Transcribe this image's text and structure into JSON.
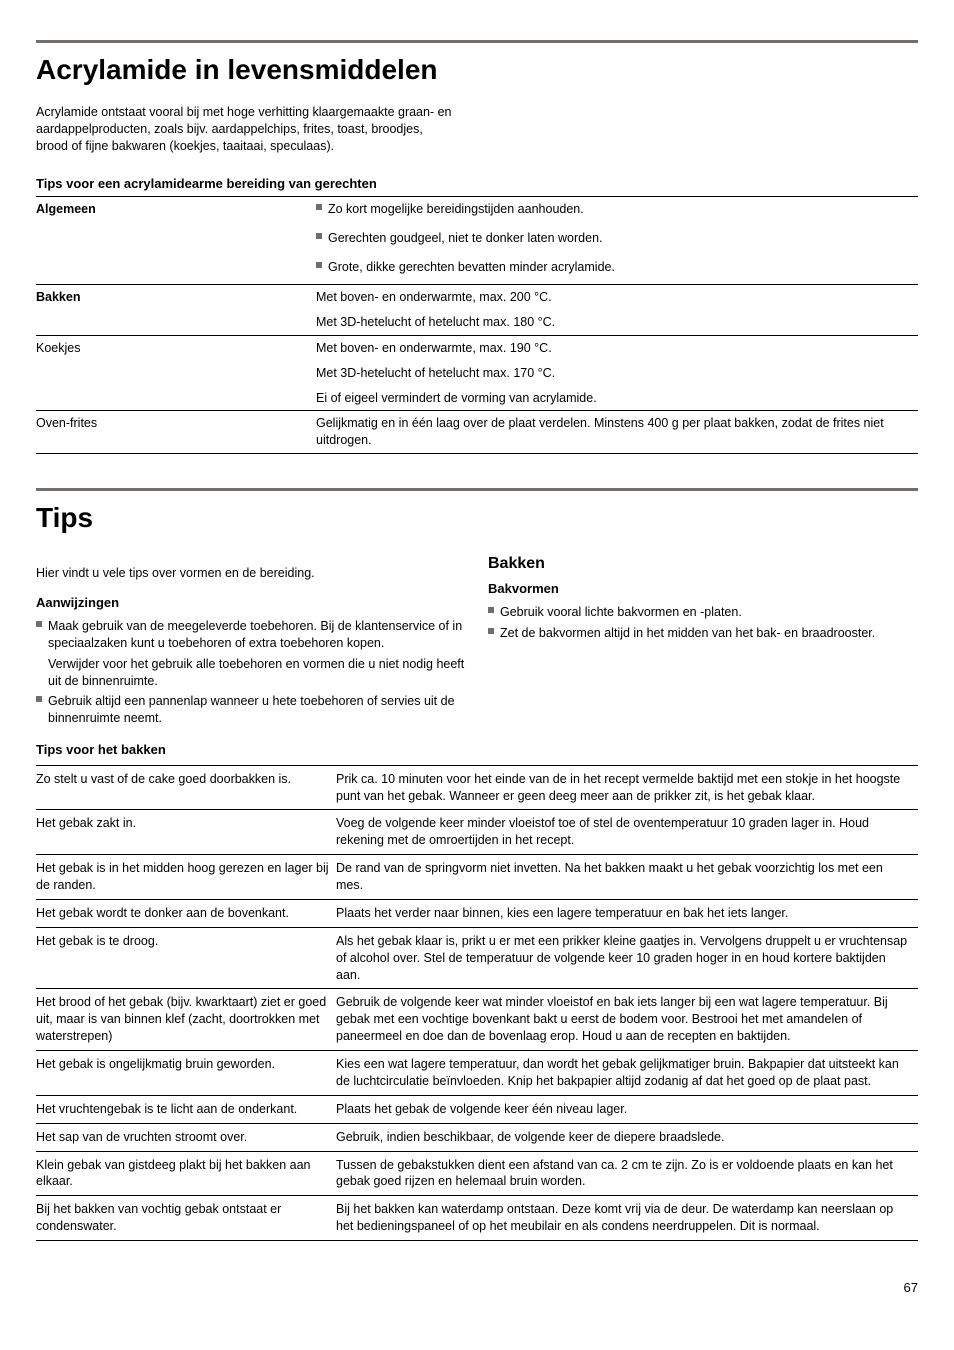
{
  "section1": {
    "title": "Acrylamide in levensmiddelen",
    "intro": "Acrylamide ontstaat vooral bij met hoge verhitting klaargemaakte graan- en aardappelproducten, zoals bijv. aardappelchips, frites, toast, broodjes, brood of fijne bakwaren (koekjes, taaitaai, speculaas).",
    "table_caption": "Tips voor een acrylamidearme bereiding van gerechten",
    "rows": [
      {
        "label": "Algemeen",
        "bold": true,
        "items": [
          "Zo kort mogelijke bereidingstijden aanhouden.",
          "Gerechten goudgeel, niet te donker laten worden.",
          "Grote, dikke gerechten bevatten minder acrylamide."
        ]
      },
      {
        "label": "Bakken",
        "bold": true,
        "items": [
          "Met boven- en onderwarmte, max. 200 °C.",
          "Met 3D-hetelucht of hetelucht max. 180 °C."
        ]
      },
      {
        "label": "Koekjes",
        "bold": false,
        "items": [
          "Met boven- en onderwarmte, max. 190 °C.",
          "Met 3D-hetelucht of hetelucht max. 170 °C.",
          "Ei of eigeel vermindert de vorming van acrylamide."
        ]
      },
      {
        "label": "Oven-frites",
        "bold": false,
        "items": [
          "Gelijkmatig en in één laag over de plaat verdelen. Minstens 400 g per plaat bakken, zodat de frites niet uitdrogen."
        ]
      }
    ]
  },
  "section2": {
    "title": "Tips",
    "intro": "Hier vindt u vele tips over vormen en de bereiding.",
    "left": {
      "heading": "Aanwijzingen",
      "items": [
        {
          "main": "Maak gebruik van de meegeleverde toebehoren. Bij de klantenservice of in speciaalzaken kunt u toebehoren of extra toebehoren kopen.",
          "sub": "Verwijder voor het gebruik alle toebehoren en vormen die u niet nodig heeft uit de binnenruimte."
        },
        {
          "main": "Gebruik altijd een pannenlap wanneer u hete toebehoren of servies uit de binnenruimte neemt."
        }
      ]
    },
    "right": {
      "heading": "Bakken",
      "subheading": "Bakvormen",
      "items": [
        "Gebruik vooral lichte bakvormen en -platen.",
        "Zet de bakvormen altijd in het midden van het bak- en braadrooster."
      ]
    },
    "tips_caption": "Tips voor het bakken",
    "tips_rows": [
      [
        "Zo stelt u vast of de cake goed doorbakken is.",
        "Prik ca. 10 minuten voor het einde van de in het recept vermelde baktijd met een stokje in het hoogste punt van het gebak. Wanneer er geen deeg meer aan de prikker zit, is het gebak klaar."
      ],
      [
        "Het gebak zakt in.",
        "Voeg de volgende keer minder vloeistof toe of stel de oventemperatuur 10 graden lager in. Houd rekening met de omroertijden in het recept."
      ],
      [
        "Het gebak is in het midden hoog gerezen en lager bij de randen.",
        "De rand van de springvorm niet invetten. Na het bakken maakt u het gebak voorzichtig los met een mes."
      ],
      [
        "Het gebak wordt te donker aan de bovenkant.",
        "Plaats het verder naar binnen, kies een lagere temperatuur en bak het iets langer."
      ],
      [
        "Het gebak is te droog.",
        "Als het gebak klaar is, prikt u er met een prikker kleine gaatjes in. Vervolgens druppelt u er vruchtensap of alcohol over. Stel de temperatuur de volgende keer 10 graden hoger in en houd kortere baktijden aan."
      ],
      [
        "Het brood of het gebak (bijv. kwarktaart) ziet er goed uit, maar is van binnen klef (zacht, doortrokken met waterstrepen)",
        "Gebruik de volgende keer wat minder vloeistof en bak iets langer bij een wat lagere temperatuur. Bij gebak met een vochtige bovenkant bakt u eerst de bodem voor. Bestrooi het met amandelen of paneermeel en doe dan de bovenlaag erop. Houd u aan de recepten en baktijden."
      ],
      [
        "Het gebak is ongelijkmatig bruin geworden.",
        "Kies een wat lagere temperatuur, dan wordt het gebak gelijkmatiger bruin. Bakpapier dat uitsteekt kan de luchtcirculatie beïnvloeden. Knip het bakpapier altijd zodanig af dat het goed op de plaat past."
      ],
      [
        "Het vruchtengebak is te licht aan de onderkant.",
        "Plaats het gebak de volgende keer één niveau lager."
      ],
      [
        "Het sap van de vruchten stroomt over.",
        "Gebruik, indien beschikbaar, de volgende keer de diepere braadslede."
      ],
      [
        "Klein gebak van gistdeeg plakt bij het bakken aan elkaar.",
        "Tussen de gebakstukken dient een afstand van ca. 2 cm te zijn. Zo is er voldoende plaats en kan het gebak goed rijzen en helemaal bruin worden."
      ],
      [
        "Bij het bakken van vochtig gebak ontstaat er condenswater.",
        "Bij het bakken kan waterdamp ontstaan. Deze komt vrij via de deur. De waterdamp kan neerslaan op het bedieningspaneel of op het meubilair en als condens neerdruppelen. Dit is normaal."
      ]
    ]
  },
  "page_number": "67"
}
